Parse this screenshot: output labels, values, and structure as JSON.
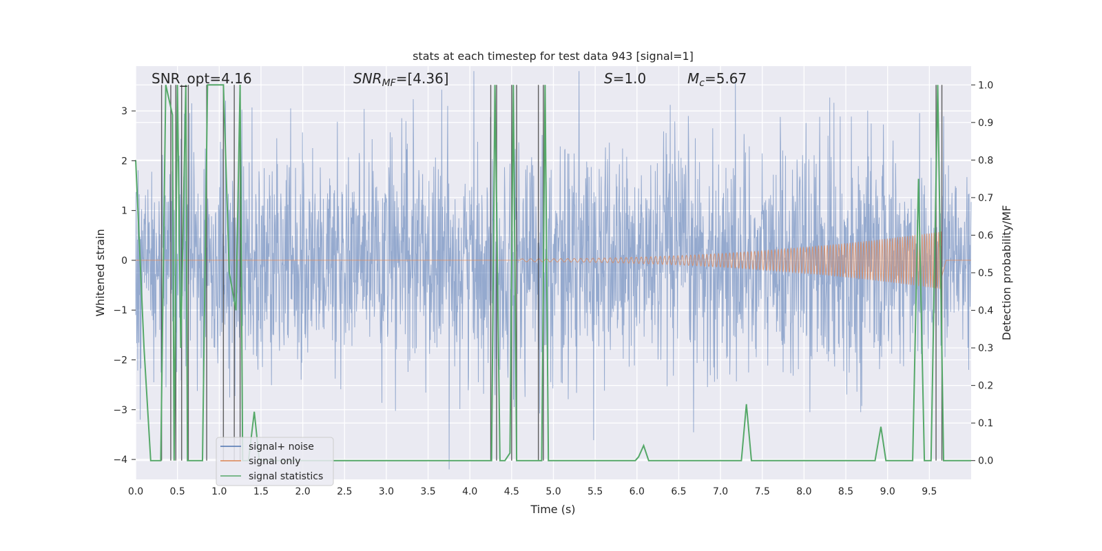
{
  "chart_data": {
    "type": "line",
    "title": "stats at each timestep for test data 943 [signal=1]",
    "xlabel": "Time (s)",
    "ylabel": "Whitened strain",
    "ylabel_right": "Detection probability/MF",
    "xlim": [
      0.0,
      10.0
    ],
    "ylim": [
      -4.4,
      3.9
    ],
    "ylim_right": [
      -0.05,
      1.05
    ],
    "x_ticks": [
      0.0,
      0.5,
      1.0,
      1.5,
      2.0,
      2.5,
      3.0,
      3.5,
      4.0,
      4.5,
      5.0,
      5.5,
      6.0,
      6.5,
      7.0,
      7.5,
      8.0,
      8.5,
      9.0,
      9.5
    ],
    "x_tick_labels": [
      "0.0",
      "0.5",
      "1.0",
      "1.5",
      "2.0",
      "2.5",
      "3.0",
      "3.5",
      "4.0",
      "4.5",
      "5.0",
      "5.5",
      "6.0",
      "6.5",
      "7.0",
      "7.5",
      "8.0",
      "8.5",
      "9.0",
      "9.5"
    ],
    "y_ticks": [
      3,
      2,
      1,
      0,
      -1,
      -2,
      -3,
      -4
    ],
    "y_tick_labels": [
      "3",
      "2",
      "1",
      "0",
      "−1",
      "−2",
      "−3",
      "−4"
    ],
    "y_right_ticks": [
      1.0,
      0.9,
      0.8,
      0.7,
      0.6,
      0.5,
      0.4,
      0.3,
      0.2,
      0.1,
      0.0
    ],
    "y_right_tick_labels": [
      "1.0",
      "0.9",
      "0.8",
      "0.7",
      "0.6",
      "0.5",
      "0.4",
      "0.3",
      "0.2",
      "0.1",
      "0.0"
    ],
    "grid": true,
    "legend_position": "lower-left",
    "annotations": {
      "snr_opt": "SNR_opt=4.16",
      "snr_mf_label": "SNR",
      "snr_mf_sub": "MF",
      "snr_mf_value": "=[4.36]",
      "s_label": "S",
      "s_value": "=1.0",
      "mc_label": "M",
      "mc_sub": "c",
      "mc_value": "=5.67"
    },
    "series": [
      {
        "name": "signal+ noise",
        "color": "#4c72b0",
        "kind": "noise",
        "sigma": 1.0,
        "xlim": [
          0.0,
          10.0
        ]
      },
      {
        "name": "signal only",
        "color": "#dd8452",
        "kind": "chirp",
        "x_start": 4.6,
        "x_end": 9.65,
        "max_amplitude": 0.55
      },
      {
        "name": "signal statistics",
        "color": "#55a868",
        "axis": "right",
        "x": [
          0.0,
          0.1,
          0.18,
          0.3,
          0.36,
          0.44,
          0.46,
          0.5,
          0.54,
          0.6,
          0.62,
          0.7,
          0.74,
          0.8,
          0.86,
          1.05,
          1.12,
          1.2,
          1.25,
          1.28,
          1.32,
          1.35,
          1.42,
          1.48,
          1.55,
          4.2,
          4.26,
          4.3,
          4.36,
          4.42,
          4.48,
          4.52,
          4.56,
          4.6,
          4.8,
          4.86,
          4.9,
          4.94,
          5.0,
          5.5,
          5.98,
          6.02,
          6.08,
          6.14,
          7.2,
          7.25,
          7.31,
          7.37,
          8.85,
          8.92,
          8.98,
          9.3,
          9.37,
          9.44,
          9.52,
          9.6,
          9.67,
          10.0
        ],
        "y": [
          0.8,
          0.3,
          0.0,
          0.0,
          1.0,
          0.92,
          0.0,
          1.0,
          0.3,
          1.0,
          0.0,
          0.0,
          0.0,
          0.0,
          1.0,
          1.0,
          0.5,
          0.4,
          1.0,
          0.0,
          0.0,
          0.0,
          0.13,
          0.0,
          0.0,
          0.0,
          0.0,
          1.0,
          0.0,
          0.0,
          0.02,
          1.0,
          0.0,
          0.0,
          0.0,
          0.0,
          1.0,
          0.0,
          0.0,
          0.0,
          0.0,
          0.01,
          0.04,
          0.0,
          0.0,
          0.0,
          0.15,
          0.0,
          0.0,
          0.09,
          0.0,
          0.0,
          0.75,
          0.0,
          0.0,
          1.0,
          0.0,
          0.0
        ]
      }
    ],
    "markers": {
      "name": "vertical markers",
      "color": "#444444",
      "x": [
        0.31,
        0.42,
        0.48,
        0.55,
        0.63,
        0.85,
        1.05,
        1.18,
        1.25,
        4.25,
        4.32,
        4.5,
        4.56,
        4.82,
        4.88,
        9.58,
        9.65
      ],
      "y_top": 1.0,
      "y_bottom": 0.0
    }
  }
}
